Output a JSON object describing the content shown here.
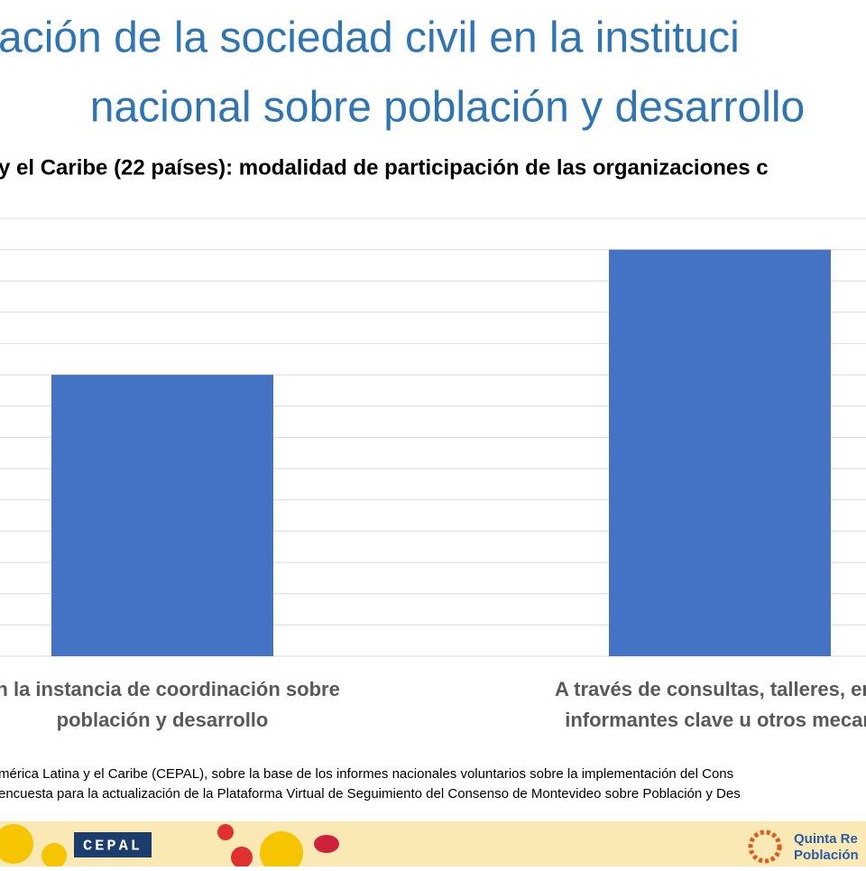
{
  "title_lines": [
    "ación de la sociedad civil en la instituci",
    "nacional sobre población y desarrollo"
  ],
  "chart_data": {
    "type": "bar",
    "subtitle": "y el Caribe (22 países): modalidad de participación de las organizaciones c",
    "categories": [
      [
        "an la instancia de coordinación sobre",
        "población y desarrollo"
      ],
      [
        "A través de consultas, talleres, enc",
        "informantes clave u otros mecan"
      ]
    ],
    "values": [
      9,
      13
    ],
    "color": "#4472c4",
    "ylim": [
      0,
      14
    ],
    "yticks": [
      0,
      1,
      2,
      3,
      4,
      5,
      6,
      7,
      8,
      9,
      10,
      11,
      12,
      13,
      14
    ],
    "grid": true
  },
  "source_lines": [
    "mérica Latina y el Caribe (CEPAL), sobre la base de los informes nacionales voluntarios sobre la implementación del Cons",
    "encuesta para la actualización de la Plataforma Virtual de Seguimiento del Consenso de Montevideo sobre Población y Des"
  ],
  "footer": {
    "logo": "CEPAL",
    "brand_lines": [
      "Quinta Re",
      "Población"
    ]
  }
}
